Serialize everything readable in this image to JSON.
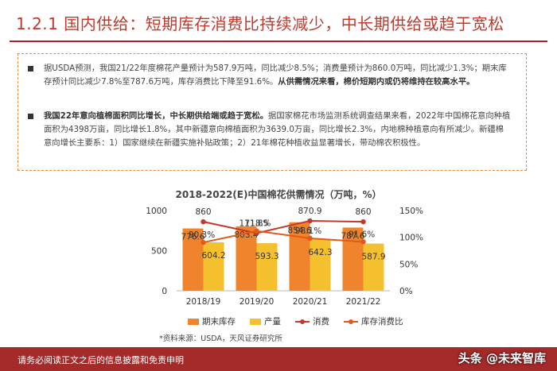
{
  "title": "1.2.1 国内供给：短期库存消费比持续减少，中长期供给或趋于宽松",
  "bullets": [
    {
      "text": "据USDA预测，我国21/22年度棉花产量预计为587.9万吨，同比减少8.5%；消费量预计为860.0万吨，同比减少1.3%；期末库存预计同比减少7.8%至787.6万吨，库存消费比下降至91.6%。",
      "bold": "从供需情况来看，棉价短期内或仍将维持在较高水平。"
    },
    {
      "bold": "我国22年意向植棉面积同比增长，中长期供给端或趋于宽松。",
      "text": "据国家棉花市场监测系统调查结果来看，2022年中国棉花意向种植面积为4398万亩，同比增长1.8%，其中新疆意向棉植面积为3639.0万亩，同比增长2.3%，内地棉种植意向有所减少。新疆棉意向增长主要系：1）国家继续在新疆实施补贴政策；2）21年棉花种植收益显著增长，带动棉农积极性。"
    }
  ],
  "chart_data": {
    "type": "bar",
    "title": "2018-2022(E)中国棉花供需情况（万吨，%）",
    "categories": [
      "2018/19",
      "2019/20",
      "2020/21",
      "2021/22"
    ],
    "series": [
      {
        "name": "期末库存",
        "kind": "bar",
        "axis": "left",
        "color": "#f0842c",
        "values": [
          776.6,
          803.4,
          854.6,
          787.6
        ]
      },
      {
        "name": "产量",
        "kind": "bar",
        "axis": "left",
        "color": "#f5c02e",
        "values": [
          604.2,
          593.3,
          642.3,
          587.9
        ]
      },
      {
        "name": "消费",
        "kind": "line",
        "axis": "left",
        "color": "#c0392b",
        "values": [
          860,
          718.5,
          870.9,
          860
        ]
      },
      {
        "name": "库存消费比",
        "kind": "line",
        "axis": "right",
        "color": "#e05a1c",
        "values": [
          90.3,
          111.8,
          98.1,
          91.6
        ]
      }
    ],
    "value_labels": {
      "期末库存": [
        "776.6",
        "803.4",
        "854.6",
        "787.6"
      ],
      "产量": [
        "604.2",
        "593.3",
        "642.3",
        "587.9"
      ],
      "消费": [
        "860",
        "718.5",
        "870.9",
        "860"
      ],
      "库存消费比": [
        "90.3%",
        "111.8%",
        "98.1%",
        "91.6%"
      ]
    },
    "yleft": {
      "range": [
        0,
        1000
      ],
      "ticks": [
        "0",
        "500",
        "1000"
      ]
    },
    "yright": {
      "range": [
        0,
        150
      ],
      "ticks": [
        "0%",
        "50%",
        "100%",
        "150%"
      ]
    },
    "grid": false,
    "legend_position": "bottom"
  },
  "source": "*资料来源：USDA，天风证券研究所",
  "footer": "请务必阅读正文之后的信息披露和免责申明",
  "watermark": "头条 @未来智库",
  "colors": {
    "brand": "#a52a2a",
    "accent": "#f0842c"
  }
}
